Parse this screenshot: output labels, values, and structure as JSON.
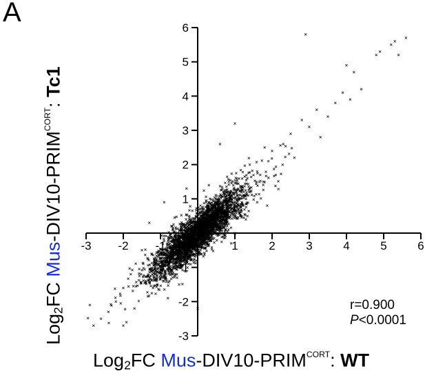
{
  "panel_label": "A",
  "labels": {
    "prefix": "Log",
    "sub": "2",
    "fc": "FC ",
    "species": "Mus",
    "sample": "-DIV10-PRIM",
    "sup": "CORT",
    "sep": ": ",
    "x_group": "WT",
    "y_group": "Tc1"
  },
  "stats": {
    "r": "r=0.900",
    "p_symbol": "P",
    "p_value": "<0.0001"
  },
  "colors": {
    "species_label": "#1a2fc0",
    "points": "#000000"
  },
  "chart_data": {
    "type": "scatter",
    "xlim": [
      -3,
      6
    ],
    "ylim": [
      -3,
      6
    ],
    "x_ticks": [
      -3,
      -2,
      -1,
      1,
      2,
      3,
      4,
      5,
      6
    ],
    "y_ticks": [
      -3,
      -2,
      -1,
      1,
      2,
      3,
      4,
      5,
      6
    ],
    "grid": false,
    "marker": "x",
    "points": [
      [
        5.6,
        5.7
      ],
      [
        5.3,
        5.6
      ],
      [
        5.2,
        5.5
      ],
      [
        5.4,
        5.2
      ],
      [
        4.9,
        5.3
      ],
      [
        4.8,
        5.2
      ],
      [
        4.0,
        4.9
      ],
      [
        4.2,
        4.7
      ],
      [
        2.9,
        5.8
      ],
      [
        3.9,
        4.1
      ],
      [
        4.4,
        4.2
      ],
      [
        4.1,
        3.9
      ],
      [
        3.7,
        3.8
      ],
      [
        3.5,
        3.4
      ],
      [
        3.2,
        3.6
      ],
      [
        3.0,
        3.1
      ],
      [
        2.8,
        3.3
      ],
      [
        2.5,
        2.9
      ],
      [
        2.3,
        2.6
      ],
      [
        2.0,
        2.4
      ],
      [
        1.8,
        2.5
      ],
      [
        1.9,
        2.1
      ],
      [
        1.6,
        1.8
      ],
      [
        1.4,
        2.0
      ],
      [
        1.0,
        3.2
      ],
      [
        0.6,
        2.6
      ],
      [
        0.3,
        1.4
      ],
      [
        1.6,
        0.9
      ],
      [
        2.1,
        1.7
      ],
      [
        2.6,
        2.2
      ],
      [
        3.3,
        2.8
      ],
      [
        -1.3,
        0.3
      ],
      [
        -1.5,
        -0.5
      ],
      [
        -1.8,
        -1.2
      ],
      [
        -2.0,
        -1.6
      ],
      [
        -2.2,
        -2.0
      ],
      [
        -2.4,
        -2.3
      ],
      [
        -2.6,
        -2.5
      ],
      [
        -2.9,
        -2.1
      ],
      [
        -2.8,
        -2.7
      ],
      [
        -2.0,
        -2.7
      ],
      [
        -1.7,
        -2.2
      ],
      [
        -1.2,
        -1.6
      ],
      [
        -0.8,
        -1.9
      ],
      [
        -0.5,
        -1.5
      ],
      [
        0.0,
        -2.2
      ],
      [
        -0.3,
        1.3
      ],
      [
        -0.9,
        0.9
      ],
      [
        1.0,
        0.0
      ],
      [
        0.9,
        -0.3
      ],
      [
        -1.0,
        -1.0
      ],
      [
        0.2,
        0.2
      ]
    ],
    "cloud": {
      "n": 3400,
      "x_mean": 0.0,
      "x_sd": 0.55,
      "slope": 0.9,
      "resid_sd": 0.28
    }
  }
}
